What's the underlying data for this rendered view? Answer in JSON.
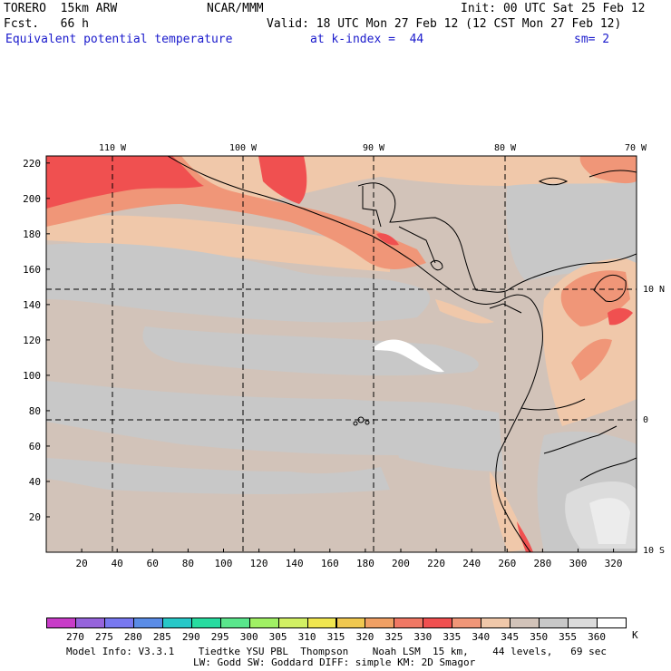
{
  "header": {
    "model": "TORERO  15km ARW",
    "org": "NCAR/MMM",
    "init": "Init: 00 UTC Sat 25 Feb 12",
    "fcst": "Fcst.   66 h",
    "valid": "Valid: 18 UTC Mon 27 Feb 12 (12 CST Mon 27 Feb 12)",
    "field": "Equivalent potential temperature",
    "level": "at k-index =  44",
    "smooth": "sm= 2"
  },
  "map": {
    "lon_labels": [
      "110 W",
      "100 W",
      "90 W",
      "80 W",
      "70 W"
    ],
    "lat_labels": [
      "10 N",
      "0",
      "10 S"
    ],
    "y_ticks": [
      "220",
      "200",
      "180",
      "160",
      "140",
      "120",
      "100",
      "80",
      "60",
      "40",
      "20"
    ],
    "x_ticks": [
      "20",
      "40",
      "60",
      "80",
      "100",
      "120",
      "140",
      "160",
      "180",
      "200",
      "220",
      "240",
      "260",
      "280",
      "300",
      "320"
    ]
  },
  "colorbar": {
    "labels": [
      "270",
      "275",
      "280",
      "285",
      "290",
      "295",
      "300",
      "305",
      "310",
      "315",
      "320",
      "325",
      "330",
      "335",
      "340",
      "345",
      "350",
      "355",
      "360"
    ],
    "unit": "K",
    "colors": [
      "#c83cc8",
      "#9664dc",
      "#7878f0",
      "#5a8ce6",
      "#28c8c8",
      "#28dca0",
      "#5ae68c",
      "#a0f064",
      "#d2f064",
      "#f0e650",
      "#f0c850",
      "#f0a064",
      "#f07864",
      "#f05050",
      "#f09678",
      "#f0c8aa",
      "#d2c3b9",
      "#c8c8c8",
      "#dcdcdc",
      "#ffffff"
    ]
  },
  "footer": {
    "line1": "Model Info: V3.3.1    Tiedtke YSU PBL  Thompson    Noah LSM  15 km,    44 levels,   69 sec",
    "line2": "LW: Godd SW: Goddard DIFF: simple KM: 2D Smagor"
  }
}
